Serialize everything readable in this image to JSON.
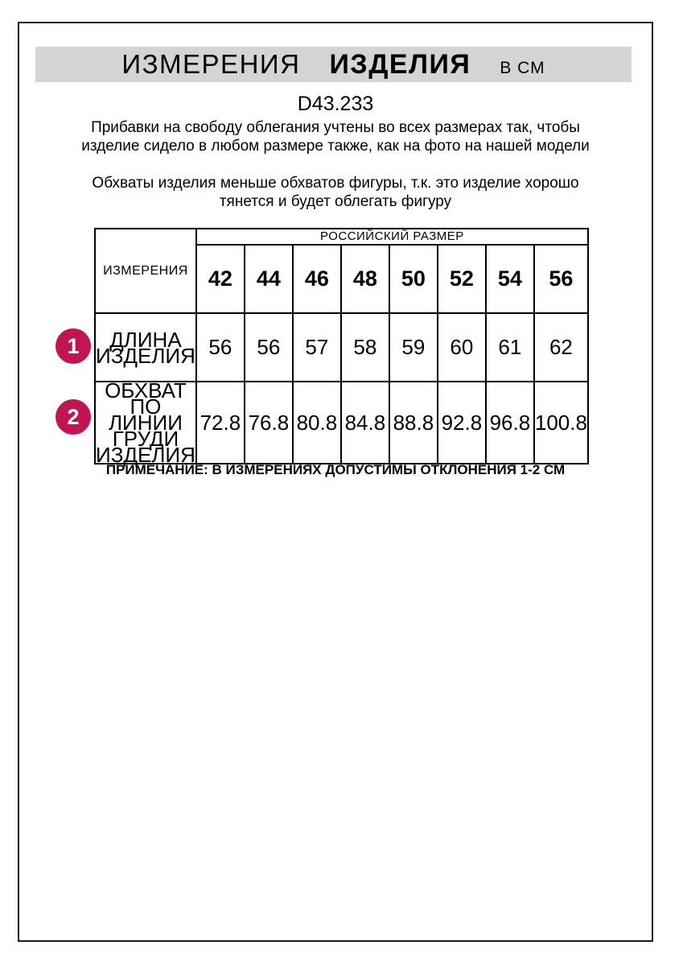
{
  "page": {
    "title": {
      "part1": "ИЗМЕРЕНИЯ",
      "part2": "ИЗДЕЛИЯ",
      "part3": "В СМ"
    },
    "product_code": "D43.233",
    "intro_paragraphs": [
      "Прибавки на свободу облегания учтены во всех размерах так, чтобы изделие сидело в любом размере также, как на фото на нашей модели",
      "Обхваты изделия меньше обхватов фигуры, т.к. это изделие хорошо тянется и будет облегать фигуру"
    ],
    "note": "ПРИМЕЧАНИЕ: В ИЗМЕРЕНИЯХ ДОПУСТИМЫ ОТКЛОНЕНИЯ 1-2 СМ"
  },
  "size_table": {
    "corner_header": "ИЗМЕРЕНИЯ",
    "size_group_header": "РОССИЙСКИЙ РАЗМЕР",
    "sizes": [
      "42",
      "44",
      "46",
      "48",
      "50",
      "52",
      "54",
      "56"
    ],
    "rows": [
      {
        "marker": "1",
        "label": "ДЛИНА ИЗДЕЛИЯ",
        "values": [
          "56",
          "56",
          "57",
          "58",
          "59",
          "60",
          "61",
          "62"
        ]
      },
      {
        "marker": "2",
        "label": "ОБХВАТ ПО ЛИНИИ ГРУДИ ИЗДЕЛИЯ",
        "values": [
          "72.8",
          "76.8",
          "80.8",
          "84.8",
          "88.8",
          "92.8",
          "96.8",
          "100.8"
        ]
      }
    ]
  },
  "colors": {
    "marker": "#c01551",
    "title_bar_bg": "#d4d4d4",
    "page_border": "#1c1c1c"
  }
}
